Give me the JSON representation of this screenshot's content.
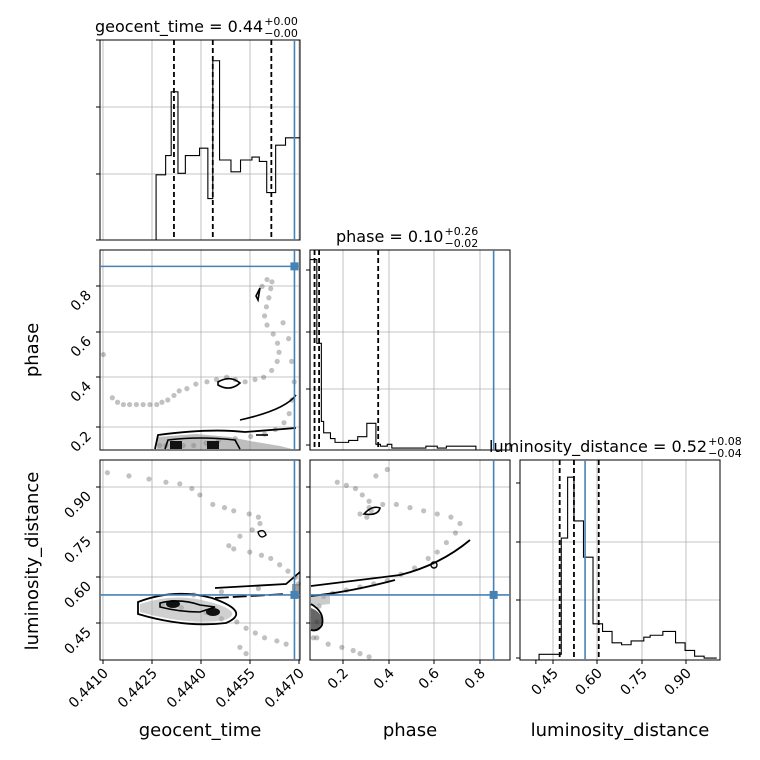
{
  "chart_data": {
    "type": "corner",
    "parameters": [
      "geocent_time",
      "phase",
      "luminosity_distance"
    ],
    "axis_labels": {
      "geocent_time": "geocent_time",
      "phase": "phase",
      "luminosity_distance": "luminosity_distance"
    },
    "titles": [
      {
        "param": "geocent_time",
        "text": "geocent_time = 0.44",
        "plus": "+0.00",
        "minus": "−0.00"
      },
      {
        "param": "phase",
        "text": "phase = 0.10",
        "plus": "+0.26",
        "minus": "−0.02"
      },
      {
        "param": "luminosity_distance",
        "text": "luminosity_distance = 0.52",
        "plus": "+0.08",
        "minus": "−0.04"
      }
    ],
    "ranges": {
      "geocent_time": [
        0.44086,
        0.44735
      ],
      "phase": [
        0.06,
        0.94
      ],
      "luminosity_distance": [
        0.35,
        0.98
      ]
    },
    "ticks": {
      "geocent_time": [
        "0.4410",
        "0.4425",
        "0.4440",
        "0.4455",
        "0.4470"
      ],
      "phase_x": [
        "0.2",
        "0.4",
        "0.6",
        "0.8"
      ],
      "phase_y": [
        "0.2",
        "0.4",
        "0.6",
        "0.8"
      ],
      "luminosity_distance": [
        "0.45",
        "0.60",
        "0.75",
        "0.90"
      ]
    },
    "truths": {
      "geocent_time": 0.44717,
      "phase": 0.868,
      "luminosity_distance": 0.555
    },
    "quantiles": {
      "geocent_time": [
        0.44326,
        0.44452,
        0.44642
      ],
      "phase": [
        0.08,
        0.1,
        0.36
      ],
      "luminosity_distance": [
        0.475,
        0.52,
        0.598
      ]
    },
    "hist_geocent_time": {
      "edges": [
        0.44086,
        0.44268,
        0.44299,
        0.44317,
        0.44339,
        0.44363,
        0.44409,
        0.44436,
        0.44452,
        0.44474,
        0.44511,
        0.44542,
        0.44579,
        0.44603,
        0.44627,
        0.44656,
        0.44688,
        0.44702,
        0.44735
      ],
      "counts": [
        0,
        0.44,
        0.57,
        1.0,
        0.45,
        0.57,
        0.62,
        0.28,
        1.21,
        0.54,
        0.46,
        0.54,
        0.56,
        0.53,
        0.32,
        0.64,
        0.69,
        0.69
      ]
    },
    "hist_phase": {
      "edges": [
        0.06,
        0.08,
        0.09,
        0.11,
        0.12,
        0.15,
        0.17,
        0.23,
        0.27,
        0.31,
        0.35,
        0.37,
        0.4,
        0.42,
        0.47,
        0.52,
        0.57,
        0.62,
        0.66,
        0.7,
        0.74,
        0.79,
        0.84,
        0.88,
        0.94
      ],
      "counts": [
        1.0,
        1.0,
        0.56,
        0.15,
        0.09,
        0.06,
        0.04,
        0.05,
        0.07,
        0.14,
        0.03,
        0.02,
        0.03,
        0.01,
        0.01,
        0.01,
        0.02,
        0.01,
        0.02,
        0.02,
        0.02,
        0.0,
        0.0,
        0.0
      ]
    },
    "hist_luminosity_distance": {
      "edges": [
        0.35,
        0.38,
        0.41,
        0.45,
        0.48,
        0.5,
        0.52,
        0.55,
        0.58,
        0.61,
        0.64,
        0.67,
        0.7,
        0.74,
        0.76,
        0.8,
        0.84,
        0.87,
        0.9,
        0.93,
        0.97
      ],
      "counts": [
        0.0,
        0.0,
        0.03,
        0.03,
        0.64,
        0.96,
        0.73,
        0.54,
        0.19,
        0.15,
        0.09,
        0.08,
        0.1,
        0.12,
        0.13,
        0.15,
        0.09,
        0.05,
        0.02,
        0.01
      ]
    },
    "samples_phase_vs_geocent_time": [
      [
        0.44097,
        0.48
      ],
      [
        0.44126,
        0.29
      ],
      [
        0.44143,
        0.27
      ],
      [
        0.44162,
        0.26
      ],
      [
        0.44182,
        0.26
      ],
      [
        0.44204,
        0.26
      ],
      [
        0.44226,
        0.26
      ],
      [
        0.44248,
        0.26
      ],
      [
        0.4427,
        0.26
      ],
      [
        0.44287,
        0.27
      ],
      [
        0.44306,
        0.28
      ],
      [
        0.44326,
        0.3
      ],
      [
        0.44343,
        0.32
      ],
      [
        0.44368,
        0.33
      ],
      [
        0.44397,
        0.35
      ],
      [
        0.44433,
        0.36
      ],
      [
        0.44464,
        0.37
      ],
      [
        0.44497,
        0.38
      ],
      [
        0.44525,
        0.37
      ],
      [
        0.44557,
        0.36
      ],
      [
        0.44589,
        0.37
      ],
      [
        0.44617,
        0.38
      ],
      [
        0.44643,
        0.41
      ],
      [
        0.44661,
        0.45
      ],
      [
        0.44667,
        0.49
      ],
      [
        0.44662,
        0.53
      ],
      [
        0.44648,
        0.57
      ],
      [
        0.44628,
        0.61
      ],
      [
        0.4462,
        0.65
      ],
      [
        0.44626,
        0.69
      ],
      [
        0.44634,
        0.73
      ],
      [
        0.4464,
        0.77
      ],
      [
        0.44644,
        0.8
      ],
      [
        0.44628,
        0.81
      ],
      [
        0.44612,
        0.78
      ],
      [
        0.4468,
        0.62
      ],
      [
        0.44698,
        0.55
      ],
      [
        0.44708,
        0.45
      ],
      [
        0.44716,
        0.36
      ],
      [
        0.44709,
        0.28
      ],
      [
        0.447,
        0.22
      ],
      [
        0.44683,
        0.18
      ],
      [
        0.44655,
        0.15
      ],
      [
        0.4462,
        0.13
      ],
      [
        0.44575,
        0.12
      ],
      [
        0.44525,
        0.11
      ],
      [
        0.4447,
        0.1
      ],
      [
        0.4443,
        0.09
      ],
      [
        0.4439,
        0.08
      ],
      [
        0.4433,
        0.08
      ],
      [
        0.4428,
        0.08
      ],
      [
        0.44462,
        0.08
      ],
      [
        0.44356,
        0.08
      ],
      [
        0.443,
        0.08
      ]
    ],
    "samples_lumdist_vs_geocent_time": [
      [
        0.4411,
        0.94
      ],
      [
        0.4418,
        0.93
      ],
      [
        0.44245,
        0.92
      ],
      [
        0.443,
        0.91
      ],
      [
        0.44345,
        0.905
      ],
      [
        0.44384,
        0.89
      ],
      [
        0.4441,
        0.87
      ],
      [
        0.44452,
        0.84
      ],
      [
        0.4449,
        0.83
      ],
      [
        0.4452,
        0.82
      ],
      [
        0.4457,
        0.81
      ],
      [
        0.446,
        0.8
      ],
      [
        0.44605,
        0.78
      ],
      [
        0.4458,
        0.76
      ],
      [
        0.4454,
        0.74
      ],
      [
        0.44504,
        0.71
      ],
      [
        0.4452,
        0.7
      ],
      [
        0.44572,
        0.69
      ],
      [
        0.4461,
        0.68
      ],
      [
        0.4464,
        0.67
      ],
      [
        0.44669,
        0.65
      ],
      [
        0.44696,
        0.63
      ],
      [
        0.4472,
        0.61
      ],
      [
        0.4473,
        0.59
      ],
      [
        0.446,
        0.575
      ],
      [
        0.4448,
        0.565
      ],
      [
        0.4439,
        0.555
      ],
      [
        0.4429,
        0.525
      ],
      [
        0.4435,
        0.515
      ],
      [
        0.4443,
        0.5
      ],
      [
        0.4448,
        0.48
      ],
      [
        0.4453,
        0.47
      ],
      [
        0.4456,
        0.45
      ],
      [
        0.4459,
        0.435
      ],
      [
        0.4462,
        0.42
      ],
      [
        0.4466,
        0.41
      ],
      [
        0.4469,
        0.4
      ],
      [
        0.4454,
        0.39
      ],
      [
        0.4456,
        0.37
      ]
    ],
    "samples_lumdist_vs_phase": [
      [
        0.075,
        0.42
      ],
      [
        0.09,
        0.47
      ],
      [
        0.1,
        0.52
      ],
      [
        0.12,
        0.55
      ],
      [
        0.16,
        0.56
      ],
      [
        0.22,
        0.57
      ],
      [
        0.28,
        0.58
      ],
      [
        0.34,
        0.59
      ],
      [
        0.4,
        0.6
      ],
      [
        0.46,
        0.62
      ],
      [
        0.52,
        0.64
      ],
      [
        0.58,
        0.67
      ],
      [
        0.62,
        0.69
      ],
      [
        0.66,
        0.72
      ],
      [
        0.7,
        0.75
      ],
      [
        0.72,
        0.78
      ],
      [
        0.68,
        0.8
      ],
      [
        0.62,
        0.81
      ],
      [
        0.56,
        0.82
      ],
      [
        0.5,
        0.83
      ],
      [
        0.44,
        0.84
      ],
      [
        0.38,
        0.84
      ],
      [
        0.32,
        0.83
      ],
      [
        0.28,
        0.81
      ],
      [
        0.31,
        0.8
      ],
      [
        0.33,
        0.82
      ],
      [
        0.32,
        0.85
      ],
      [
        0.29,
        0.87
      ],
      [
        0.26,
        0.89
      ],
      [
        0.22,
        0.9
      ],
      [
        0.18,
        0.91
      ],
      [
        0.35,
        0.93
      ],
      [
        0.4,
        0.95
      ],
      [
        0.09,
        0.42
      ],
      [
        0.14,
        0.4
      ],
      [
        0.2,
        0.39
      ],
      [
        0.25,
        0.38
      ],
      [
        0.28,
        0.37
      ],
      [
        0.32,
        0.36
      ]
    ]
  }
}
